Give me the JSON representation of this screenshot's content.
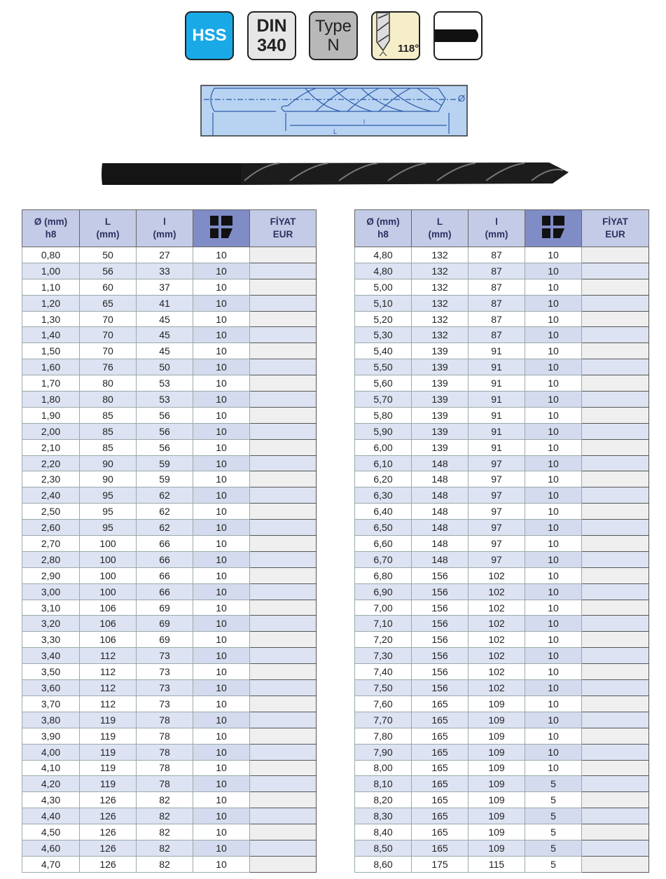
{
  "badges": {
    "material": "HSS",
    "standard_line1": "DIN",
    "standard_line2": "340",
    "type_line1": "Type",
    "type_line2": "N",
    "angle": "118°"
  },
  "header": {
    "diameter_line1": "Ø (mm)",
    "diameter_line2": "h8",
    "L_line1": "L",
    "L_line2": "(mm)",
    "l_line1": "l",
    "l_line2": "(mm)",
    "package_icon": "package-quantity-icon",
    "price_line1": "FİYAT",
    "price_line2": "EUR"
  },
  "drawing": {
    "dia_label": "Ø",
    "l_label": "l",
    "L_label": "L"
  },
  "colors": {
    "hss": "#19a9e6",
    "header": "#c4cbe6",
    "header_icon": "#7f8cc6",
    "stripe": "#dde3f2"
  },
  "left_rows": [
    [
      "0,80",
      "50",
      "27",
      "10"
    ],
    [
      "1,00",
      "56",
      "33",
      "10"
    ],
    [
      "1,10",
      "60",
      "37",
      "10"
    ],
    [
      "1,20",
      "65",
      "41",
      "10"
    ],
    [
      "1,30",
      "70",
      "45",
      "10"
    ],
    [
      "1,40",
      "70",
      "45",
      "10"
    ],
    [
      "1,50",
      "70",
      "45",
      "10"
    ],
    [
      "1,60",
      "76",
      "50",
      "10"
    ],
    [
      "1,70",
      "80",
      "53",
      "10"
    ],
    [
      "1,80",
      "80",
      "53",
      "10"
    ],
    [
      "1,90",
      "85",
      "56",
      "10"
    ],
    [
      "2,00",
      "85",
      "56",
      "10"
    ],
    [
      "2,10",
      "85",
      "56",
      "10"
    ],
    [
      "2,20",
      "90",
      "59",
      "10"
    ],
    [
      "2,30",
      "90",
      "59",
      "10"
    ],
    [
      "2,40",
      "95",
      "62",
      "10"
    ],
    [
      "2,50",
      "95",
      "62",
      "10"
    ],
    [
      "2,60",
      "95",
      "62",
      "10"
    ],
    [
      "2,70",
      "100",
      "66",
      "10"
    ],
    [
      "2,80",
      "100",
      "66",
      "10"
    ],
    [
      "2,90",
      "100",
      "66",
      "10"
    ],
    [
      "3,00",
      "100",
      "66",
      "10"
    ],
    [
      "3,10",
      "106",
      "69",
      "10"
    ],
    [
      "3,20",
      "106",
      "69",
      "10"
    ],
    [
      "3,30",
      "106",
      "69",
      "10"
    ],
    [
      "3,40",
      "112",
      "73",
      "10"
    ],
    [
      "3,50",
      "112",
      "73",
      "10"
    ],
    [
      "3,60",
      "112",
      "73",
      "10"
    ],
    [
      "3,70",
      "112",
      "73",
      "10"
    ],
    [
      "3,80",
      "119",
      "78",
      "10"
    ],
    [
      "3,90",
      "119",
      "78",
      "10"
    ],
    [
      "4,00",
      "119",
      "78",
      "10"
    ],
    [
      "4,10",
      "119",
      "78",
      "10"
    ],
    [
      "4,20",
      "119",
      "78",
      "10"
    ],
    [
      "4,30",
      "126",
      "82",
      "10"
    ],
    [
      "4,40",
      "126",
      "82",
      "10"
    ],
    [
      "4,50",
      "126",
      "82",
      "10"
    ],
    [
      "4,60",
      "126",
      "82",
      "10"
    ],
    [
      "4,70",
      "126",
      "82",
      "10"
    ]
  ],
  "right_rows": [
    [
      "4,80",
      "132",
      "87",
      "10"
    ],
    [
      "4,80",
      "132",
      "87",
      "10"
    ],
    [
      "5,00",
      "132",
      "87",
      "10"
    ],
    [
      "5,10",
      "132",
      "87",
      "10"
    ],
    [
      "5,20",
      "132",
      "87",
      "10"
    ],
    [
      "5,30",
      "132",
      "87",
      "10"
    ],
    [
      "5,40",
      "139",
      "91",
      "10"
    ],
    [
      "5,50",
      "139",
      "91",
      "10"
    ],
    [
      "5,60",
      "139",
      "91",
      "10"
    ],
    [
      "5,70",
      "139",
      "91",
      "10"
    ],
    [
      "5,80",
      "139",
      "91",
      "10"
    ],
    [
      "5,90",
      "139",
      "91",
      "10"
    ],
    [
      "6,00",
      "139",
      "91",
      "10"
    ],
    [
      "6,10",
      "148",
      "97",
      "10"
    ],
    [
      "6,20",
      "148",
      "97",
      "10"
    ],
    [
      "6,30",
      "148",
      "97",
      "10"
    ],
    [
      "6,40",
      "148",
      "97",
      "10"
    ],
    [
      "6,50",
      "148",
      "97",
      "10"
    ],
    [
      "6,60",
      "148",
      "97",
      "10"
    ],
    [
      "6,70",
      "148",
      "97",
      "10"
    ],
    [
      "6,80",
      "156",
      "102",
      "10"
    ],
    [
      "6,90",
      "156",
      "102",
      "10"
    ],
    [
      "7,00",
      "156",
      "102",
      "10"
    ],
    [
      "7,10",
      "156",
      "102",
      "10"
    ],
    [
      "7,20",
      "156",
      "102",
      "10"
    ],
    [
      "7,30",
      "156",
      "102",
      "10"
    ],
    [
      "7,40",
      "156",
      "102",
      "10"
    ],
    [
      "7,50",
      "156",
      "102",
      "10"
    ],
    [
      "7,60",
      "165",
      "109",
      "10"
    ],
    [
      "7,70",
      "165",
      "109",
      "10"
    ],
    [
      "7,80",
      "165",
      "109",
      "10"
    ],
    [
      "7,90",
      "165",
      "109",
      "10"
    ],
    [
      "8,00",
      "165",
      "109",
      "10"
    ],
    [
      "8,10",
      "165",
      "109",
      "5"
    ],
    [
      "8,20",
      "165",
      "109",
      "5"
    ],
    [
      "8,30",
      "165",
      "109",
      "5"
    ],
    [
      "8,40",
      "165",
      "109",
      "5"
    ],
    [
      "8,50",
      "165",
      "109",
      "5"
    ],
    [
      "8,60",
      "175",
      "115",
      "5"
    ]
  ]
}
